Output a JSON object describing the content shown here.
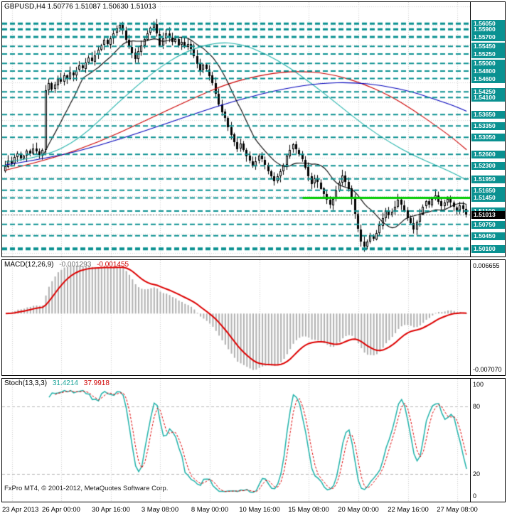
{
  "colors": {
    "background": "#ffffff",
    "panel_border": "#000000",
    "grid": "#cfcfcf",
    "candle_up": "#ffffff",
    "candle_down": "#000000",
    "candle_outline": "#000000",
    "level": "#0a9191",
    "level_label_bg": "#0a9191",
    "green_line": "#00cc00",
    "ma_black": "#000000",
    "ma_red": "#cc0000",
    "ma_blue": "#0000bb",
    "ma_teal": "#20b2aa",
    "macd_hist": "#b0b0b0",
    "macd_signal": "#dd0000",
    "stoch_main": "#20b2aa",
    "stoch_signal": "#dd0000",
    "current_price_bg": "#000000",
    "current_price_line": "#666666"
  },
  "chart_data": [
    {
      "type": "candlestick",
      "title": "GBPUSD,H4 1.50776 1.51087 1.50630 1.51013",
      "symbol": "GBPUSD",
      "timeframe": "H4",
      "current_bar": {
        "open": 1.50776,
        "high": 1.51087,
        "low": 1.5063,
        "close": 1.51013
      },
      "ylim": [
        1.499,
        1.5662
      ],
      "grid_step": 0.005,
      "first_open": 1.5215,
      "closes": [
        1.5228,
        1.5244,
        1.5236,
        1.5252,
        1.5262,
        1.5248,
        1.5256,
        1.527,
        1.5262,
        1.5275,
        1.5268,
        1.5258,
        1.5272,
        1.543,
        1.5448,
        1.5432,
        1.5444,
        1.546,
        1.5452,
        1.5468,
        1.546,
        1.5476,
        1.5468,
        1.5482,
        1.5494,
        1.5486,
        1.5502,
        1.5516,
        1.5506,
        1.5522,
        1.5536,
        1.5548,
        1.5562,
        1.555,
        1.5566,
        1.558,
        1.5592,
        1.5601,
        1.5586,
        1.5562,
        1.5544,
        1.5528,
        1.5512,
        1.5532,
        1.5548,
        1.5564,
        1.558,
        1.5594,
        1.5603,
        1.5578,
        1.5548,
        1.5566,
        1.558,
        1.5568,
        1.5556,
        1.5564,
        1.5548,
        1.5556,
        1.5544,
        1.5552,
        1.5538,
        1.552,
        1.55,
        1.5482,
        1.5496,
        1.5484,
        1.5468,
        1.5448,
        1.542,
        1.5392,
        1.5372,
        1.5356,
        1.5332,
        1.5312,
        1.5292,
        1.5274,
        1.5288,
        1.5272,
        1.5256,
        1.5242,
        1.5228,
        1.5242,
        1.5256,
        1.5246,
        1.5232,
        1.5216,
        1.5202,
        1.5188,
        1.5202,
        1.5216,
        1.5232,
        1.5256,
        1.5272,
        1.5286,
        1.5272,
        1.526,
        1.5246,
        1.5226,
        1.5202,
        1.5182,
        1.5196,
        1.5186,
        1.517,
        1.5155,
        1.514,
        1.5126,
        1.5142,
        1.5165,
        1.5186,
        1.5204,
        1.5188,
        1.517,
        1.5142,
        1.5102,
        1.5062,
        1.503,
        1.5016,
        1.503,
        1.5046,
        1.5036,
        1.5052,
        1.5072,
        1.5092,
        1.5112,
        1.5098,
        1.5108,
        1.5122,
        1.514,
        1.5126,
        1.5112,
        1.5092,
        1.5078,
        1.5062,
        1.5082,
        1.5102,
        1.5122,
        1.5136,
        1.5126,
        1.5142,
        1.5152,
        1.5136,
        1.5122,
        1.5132,
        1.5142,
        1.5132,
        1.512,
        1.5112,
        1.5126,
        1.5116,
        1.5101
      ],
      "levels": [
        {
          "price": 1.5605,
          "label": "1.56050",
          "weight": 3
        },
        {
          "price": 1.559,
          "label": "1.55900",
          "weight": 3
        },
        {
          "price": 1.557,
          "label": "1.55700",
          "weight": 3
        },
        {
          "price": 1.5545,
          "label": "1.55450",
          "weight": 2
        },
        {
          "price": 1.5525,
          "label": "1.55250",
          "weight": 2
        },
        {
          "price": 1.55,
          "label": "1.55000",
          "weight": 2
        },
        {
          "price": 1.548,
          "label": "1.54800",
          "weight": 2
        },
        {
          "price": 1.546,
          "label": "1.54600",
          "weight": 2
        },
        {
          "price": 1.5425,
          "label": "1.54250",
          "weight": 2
        },
        {
          "price": 1.541,
          "label": "1.54100",
          "weight": 2
        },
        {
          "price": 1.5365,
          "label": "1.53650",
          "weight": 2
        },
        {
          "price": 1.5335,
          "label": "1.53350",
          "weight": 2
        },
        {
          "price": 1.5305,
          "label": "1.53050",
          "weight": 2
        },
        {
          "price": 1.526,
          "label": "1.52600",
          "weight": 2
        },
        {
          "price": 1.523,
          "label": "1.52300",
          "weight": 2
        },
        {
          "price": 1.5195,
          "label": "1.51950",
          "weight": 2
        },
        {
          "price": 1.5165,
          "label": "1.51650",
          "weight": 2
        },
        {
          "price": 1.5145,
          "label": "1.51450",
          "weight": 2
        },
        {
          "price": 1.511,
          "label": "1.51100",
          "weight": 2
        },
        {
          "price": 1.5075,
          "label": "1.50750",
          "weight": 2
        },
        {
          "price": 1.5045,
          "label": "1.50450",
          "weight": 2
        },
        {
          "price": 1.501,
          "label": "1.50100",
          "weight": 4
        }
      ],
      "green_line": {
        "price": 1.5145,
        "start_index": 96,
        "width": 3
      },
      "current_price": {
        "value": 1.51013,
        "label": "1.51013"
      },
      "moving_averages": [
        {
          "name": "ma-black-fast",
          "color_key": "ma_black",
          "type": "computed_sma",
          "period": 13
        },
        {
          "name": "ma-teal",
          "color_key": "ma_teal",
          "anchors": [
            [
              0,
              1.524
            ],
            [
              12,
              1.5252
            ],
            [
              24,
              1.53
            ],
            [
              36,
              1.5395
            ],
            [
              48,
              1.548
            ],
            [
              58,
              1.5532
            ],
            [
              68,
              1.5556
            ],
            [
              76,
              1.5552
            ],
            [
              84,
              1.5526
            ],
            [
              92,
              1.5488
            ],
            [
              100,
              1.544
            ],
            [
              108,
              1.5388
            ],
            [
              116,
              1.5336
            ],
            [
              124,
              1.5292
            ],
            [
              132,
              1.5256
            ],
            [
              140,
              1.5228
            ],
            [
              146,
              1.5205
            ],
            [
              149,
              1.5192
            ]
          ]
        },
        {
          "name": "ma-red",
          "color_key": "ma_red",
          "anchors": [
            [
              0,
              1.5218
            ],
            [
              15,
              1.5248
            ],
            [
              30,
              1.5292
            ],
            [
              45,
              1.5348
            ],
            [
              60,
              1.5406
            ],
            [
              72,
              1.5448
            ],
            [
              84,
              1.5472
            ],
            [
              94,
              1.548
            ],
            [
              104,
              1.5474
            ],
            [
              114,
              1.5452
            ],
            [
              124,
              1.5416
            ],
            [
              132,
              1.5376
            ],
            [
              140,
              1.533
            ],
            [
              145,
              1.53
            ],
            [
              149,
              1.5272
            ]
          ]
        },
        {
          "name": "ma-blue",
          "color_key": "ma_blue",
          "anchors": [
            [
              0,
              1.5232
            ],
            [
              15,
              1.5252
            ],
            [
              30,
              1.5282
            ],
            [
              45,
              1.5322
            ],
            [
              60,
              1.5364
            ],
            [
              75,
              1.5404
            ],
            [
              90,
              1.5434
            ],
            [
              102,
              1.5448
            ],
            [
              112,
              1.545
            ],
            [
              122,
              1.5442
            ],
            [
              132,
              1.5424
            ],
            [
              140,
              1.5402
            ],
            [
              145,
              1.5388
            ],
            [
              149,
              1.5374
            ]
          ]
        }
      ]
    },
    {
      "type": "macd",
      "label": "MACD(12,26,9)",
      "params": [
        12,
        26,
        9
      ],
      "values_text": [
        "-0.001293",
        "-0.001455"
      ],
      "scale_labels": {
        "max": "0.006655",
        "min": "-0.007070"
      },
      "derived_from_series": 0
    },
    {
      "type": "stochastic",
      "label": "Stoch(13,3,3)",
      "params": [
        13,
        3,
        3
      ],
      "values_text": [
        "31.4214",
        "37.9918"
      ],
      "level_lines": [
        80,
        20
      ],
      "scale_labels": [
        {
          "text": "100",
          "value": 100
        },
        {
          "text": "80",
          "value": 80
        },
        {
          "text": "20",
          "value": 20
        },
        {
          "text": "0",
          "value": 0
        }
      ],
      "derived_from_series": 0
    }
  ],
  "time_axis": {
    "labels": [
      {
        "text": "23 Apr 2013",
        "index": 2,
        "align": "left"
      },
      {
        "text": "26 Apr 00:00",
        "index": 18
      },
      {
        "text": "30 Apr 16:00",
        "index": 34
      },
      {
        "text": "3 May 08:00",
        "index": 50
      },
      {
        "text": "8 May 00:00",
        "index": 66
      },
      {
        "text": "10 May 16:00",
        "index": 82
      },
      {
        "text": "15 May 08:00",
        "index": 98
      },
      {
        "text": "20 May 00:00",
        "index": 114
      },
      {
        "text": "22 May 16:00",
        "index": 130
      },
      {
        "text": "27 May 08:00",
        "index": 146
      }
    ]
  },
  "branding": {
    "copyright": "FxPro MT4, © 2001-2012, MetaQuotes Software Corp."
  }
}
